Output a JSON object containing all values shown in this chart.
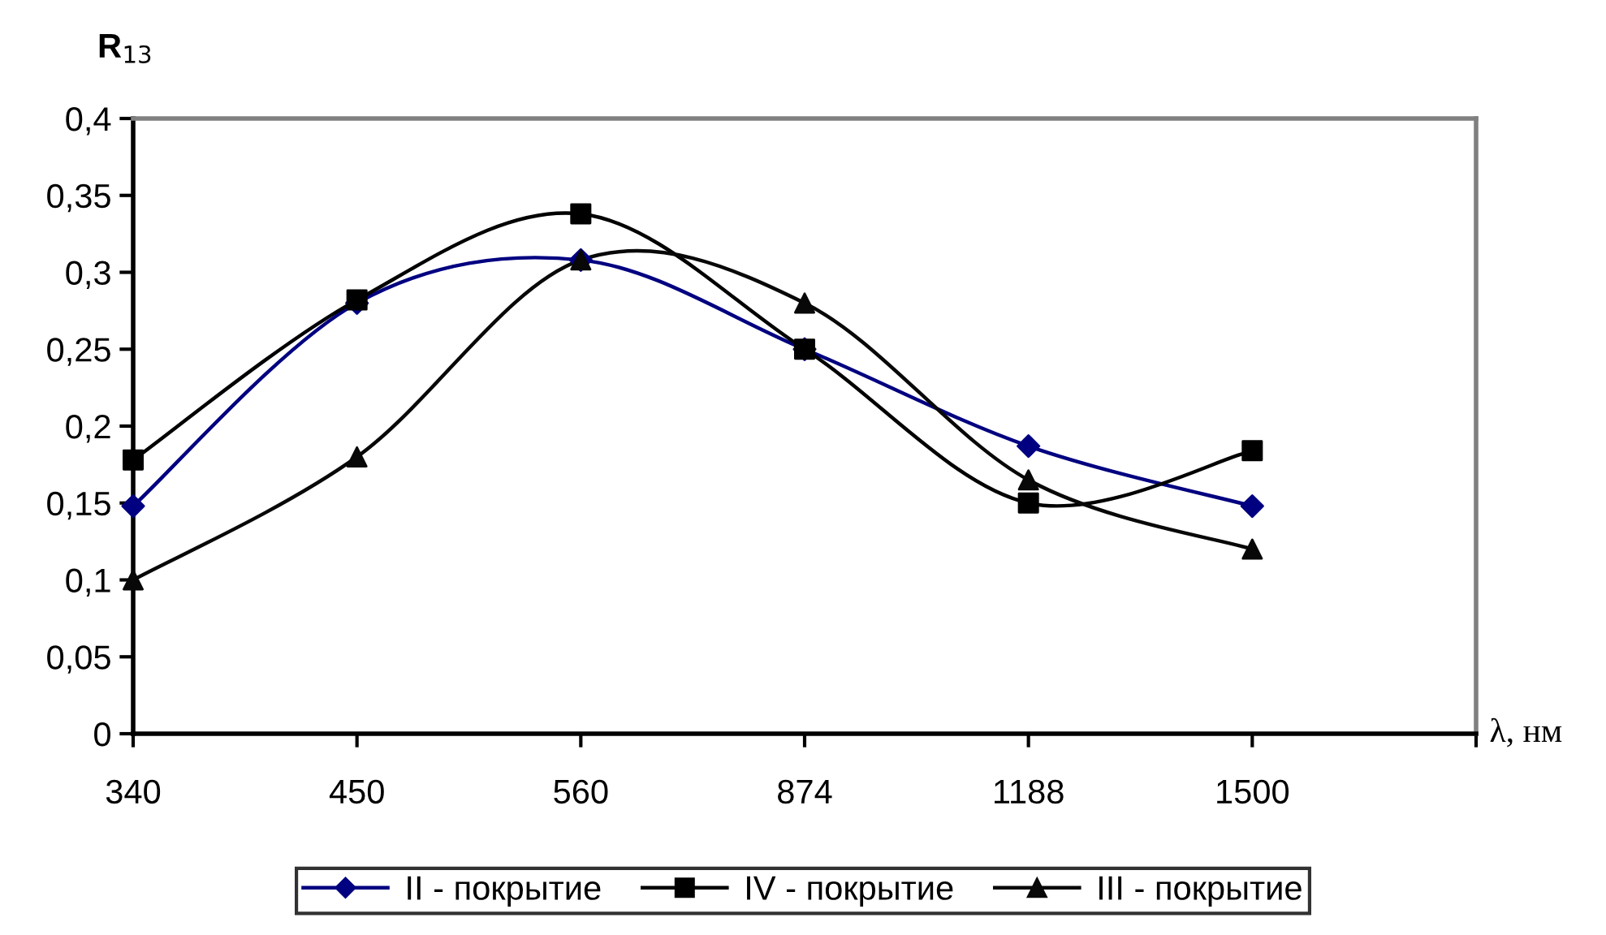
{
  "chart_data": {
    "type": "line",
    "ylabel": "R$_{13}$",
    "xlabel": "λ, нм",
    "categories": [
      "340",
      "450",
      "560",
      "874",
      "1188",
      "1500",
      null
    ],
    "series": [
      {
        "name": "II - покрытие",
        "color": "#000080",
        "marker": "diamond",
        "values": [
          0.148,
          0.28,
          0.308,
          0.25,
          0.187,
          0.148,
          null
        ]
      },
      {
        "name": "IV - покрытие",
        "color": "#000000",
        "marker": "square",
        "values": [
          0.178,
          0.282,
          0.338,
          0.25,
          0.15,
          0.184,
          null
        ]
      },
      {
        "name": "III - покрытие",
        "color": "#080808",
        "marker": "triangle",
        "values": [
          0.1,
          0.18,
          0.308,
          0.28,
          0.165,
          0.12,
          null
        ]
      }
    ],
    "ylim": [
      0,
      0.4
    ],
    "yticks": [
      {
        "value": 0,
        "label": "0"
      },
      {
        "value": 0.05,
        "label": "0,05"
      },
      {
        "value": 0.1,
        "label": "0,1"
      },
      {
        "value": 0.15,
        "label": "0,15"
      },
      {
        "value": 0.2,
        "label": "0,2"
      },
      {
        "value": 0.25,
        "label": "0,25"
      },
      {
        "value": 0.3,
        "label": "0,3"
      },
      {
        "value": 0.35,
        "label": "0,35"
      },
      {
        "value": 0.4,
        "label": "0,4"
      }
    ],
    "grid": false,
    "legend": "bottom",
    "line_style": "solid"
  }
}
